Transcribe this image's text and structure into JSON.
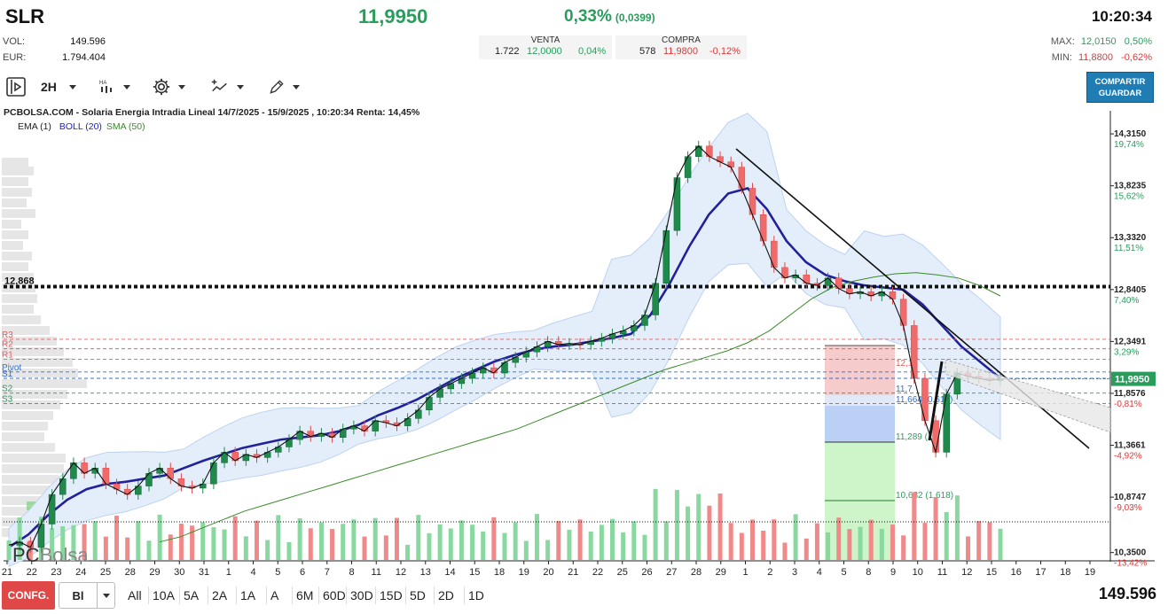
{
  "header": {
    "symbol": "SLR",
    "price": "11,9950",
    "change_pct": "0,33%",
    "change_abs": "(0,0399)",
    "time": "10:20:34",
    "vol_label": "VOL:",
    "vol_value": "149.596",
    "eur_label": "EUR:",
    "eur_value": "1.794.404",
    "venta_label": "VENTA",
    "venta_qty": "1.722",
    "venta_price": "12,0000",
    "venta_pct": "0,04%",
    "compra_label": "COMPRA",
    "compra_qty": "578",
    "compra_price": "11,9800",
    "compra_pct": "-0,12%",
    "max_label": "MAX:",
    "max_value": "12,0150",
    "max_pct": "0,50%",
    "min_label": "MIN:",
    "min_value": "11,8800",
    "min_pct": "-0,62%"
  },
  "toolbar": {
    "interval": "2H",
    "share_line1": "COMPARTIR",
    "share_line2": "GUARDAR"
  },
  "chart": {
    "title": "PCBOLSA.COM - Solaria Energia Intradia Lineal 14/7/2025 - 15/9/2025 , 10:20:34 Renta: 14,45%",
    "legend_ema": "EMA (1)",
    "legend_boll": "BOLL (20)",
    "legend_sma": "SMA (50)",
    "watermark": "PCBolsa",
    "ref_line_label": "12,868",
    "pivot_labels": [
      "R3",
      "R2",
      "R1",
      "Pivot",
      "S1",
      "S2",
      "S3"
    ],
    "current_price_tag": "11,9950",
    "fib_labels": [
      "12,1",
      "11,7",
      "11,664 (0.618)",
      "11,289 (1)",
      "10,682 (1.618)"
    ]
  },
  "chart_data": {
    "type": "line",
    "title": "PCBOLSA.COM - Solaria Energia Intradia Lineal 14/7/2025 - 15/9/2025 , 10:20:34 Renta: 14,45%",
    "x_tick_labels": [
      "21",
      "22",
      "23",
      "24",
      "25",
      "28",
      "29",
      "30",
      "31",
      "1",
      "4",
      "5",
      "6",
      "7",
      "8",
      "11",
      "12",
      "13",
      "14",
      "15",
      "18",
      "19",
      "20",
      "21",
      "22",
      "25",
      "26",
      "27",
      "28",
      "29",
      "1",
      "2",
      "3",
      "4",
      "5",
      "8",
      "9",
      "10",
      "11",
      "12",
      "15",
      "16",
      "17",
      "18",
      "19"
    ],
    "y_ticks": [
      {
        "value": "14,3150",
        "pct": "19,74%"
      },
      {
        "value": "13,8235",
        "pct": "15,62%"
      },
      {
        "value": "13,3320",
        "pct": "11,51%"
      },
      {
        "value": "12,8405",
        "pct": "7,40%"
      },
      {
        "value": "12,3491",
        "pct": "3,29%"
      },
      {
        "value": "11,8576",
        "pct": "-0,81%"
      },
      {
        "value": "11,3661",
        "pct": "-4,92%"
      },
      {
        "value": "10,8747",
        "pct": "-9,03%"
      },
      {
        "value": "10,3500",
        "pct": "-13,42%"
      }
    ],
    "ylim": [
      10.28,
      14.45
    ],
    "reference_level": 12.868,
    "pivots": {
      "R3": 12.37,
      "R2": 12.28,
      "R1": 12.18,
      "Pivot": 12.06,
      "S1": 12.0,
      "S2": 11.86,
      "S3": 11.76
    },
    "close_series": [
      10.42,
      10.45,
      10.4,
      10.62,
      10.9,
      11.05,
      11.2,
      11.1,
      11.15,
      11.0,
      10.95,
      10.9,
      10.98,
      11.1,
      11.15,
      11.05,
      10.98,
      10.96,
      11.0,
      11.2,
      11.3,
      11.22,
      11.28,
      11.25,
      11.3,
      11.35,
      11.42,
      11.5,
      11.45,
      11.48,
      11.44,
      11.52,
      11.55,
      11.5,
      11.6,
      11.58,
      11.55,
      11.62,
      11.7,
      11.82,
      11.9,
      11.95,
      12.0,
      12.05,
      12.1,
      12.05,
      12.15,
      12.2,
      12.25,
      12.3,
      12.35,
      12.32,
      12.33,
      12.32,
      12.35,
      12.38,
      12.42,
      12.45,
      12.5,
      12.6,
      12.9,
      13.4,
      13.9,
      14.1,
      14.2,
      14.1,
      14.05,
      14.0,
      13.8,
      13.55,
      13.3,
      13.05,
      12.95,
      12.98,
      12.9,
      12.88,
      12.95,
      12.85,
      12.8,
      12.82,
      12.78,
      12.82,
      12.75,
      12.5,
      12.0,
      11.6,
      11.3,
      11.85,
      12.05,
      12.02,
      12.0,
      11.98,
      11.995
    ],
    "sma50_series": [
      10.45,
      10.5,
      10.58,
      10.66,
      10.74,
      10.8,
      10.86,
      10.92,
      10.98,
      11.04,
      11.1,
      11.16,
      11.22,
      11.28,
      11.34,
      11.4,
      11.46,
      11.52,
      11.6,
      11.68,
      11.76,
      11.84,
      11.92,
      12.0,
      12.08,
      12.14,
      12.2,
      12.26,
      12.34,
      12.45,
      12.6,
      12.75,
      12.86,
      12.92,
      12.96,
      12.99,
      13.0,
      12.98,
      12.95,
      12.88,
      12.78
    ],
    "boll_mid_series": [
      10.4,
      10.52,
      10.7,
      10.85,
      10.95,
      11.0,
      11.02,
      11.05,
      11.08,
      11.15,
      11.22,
      11.28,
      11.34,
      11.38,
      11.42,
      11.44,
      11.46,
      11.5,
      11.56,
      11.65,
      11.72,
      11.8,
      11.9,
      12.0,
      12.08,
      12.16,
      12.22,
      12.27,
      12.3,
      12.32,
      12.35,
      12.38,
      12.42,
      12.6,
      12.9,
      13.25,
      13.55,
      13.75,
      13.8,
      13.6,
      13.3,
      13.1,
      12.98,
      12.92,
      12.88,
      12.86,
      12.84,
      12.7,
      12.5,
      12.3,
      12.15,
      12.0
    ],
    "volume_note": "volume histogram along the bottom of the price pane"
  },
  "bottom_bar": {
    "config_label": "CONFG.",
    "style_value": "Bl",
    "ranges": [
      "All",
      "10A",
      "5A",
      "2A",
      "1A",
      "A",
      "6M",
      "60D",
      "30D",
      "15D",
      "5D",
      "2D",
      "1D"
    ],
    "volume": "149.596"
  }
}
